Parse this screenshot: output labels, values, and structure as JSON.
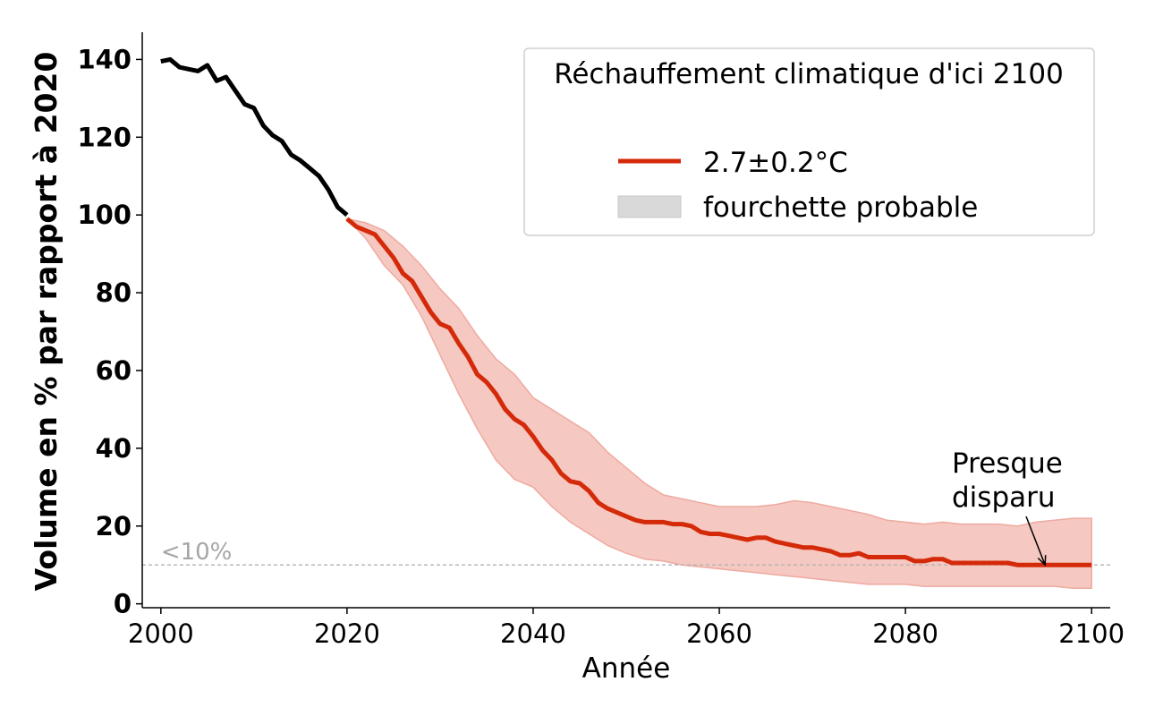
{
  "chart_data": {
    "type": "line",
    "title": "",
    "xlabel": "Année",
    "ylabel": "Volume en % par rapport à 2020",
    "xlim": [
      1998,
      2102
    ],
    "ylim": [
      -1,
      147
    ],
    "xticks": [
      2000,
      2020,
      2040,
      2060,
      2080,
      2100
    ],
    "yticks": [
      0,
      20,
      40,
      60,
      80,
      100,
      120,
      140
    ],
    "grid": false,
    "legend": {
      "title": "Réchauffement climatique d'ici 2100",
      "placement": "top-right",
      "entries": [
        {
          "label": "2.7±0.2°C",
          "kind": "line"
        },
        {
          "label": "fourchette probable",
          "kind": "band"
        }
      ]
    },
    "colors": {
      "historical": "#000000",
      "projection": "#d42a0a",
      "band": "#f5c8c1",
      "band_edge": "#eeaaa0",
      "reference": "#b3b3b3",
      "reference_text": "#a6a6a6",
      "legend_band": "#d9d9d9"
    },
    "reference_line": {
      "y": 10,
      "label": "<10%"
    },
    "annotation": {
      "lines": [
        "Presque",
        "disparu"
      ],
      "target": [
        2095,
        10
      ]
    },
    "historical": {
      "name": "",
      "x": [
        2000,
        2001,
        2002,
        2003,
        2004,
        2005,
        2006,
        2007,
        2008,
        2009,
        2010,
        2011,
        2012,
        2013,
        2014,
        2015,
        2016,
        2017,
        2018,
        2019,
        2020
      ],
      "y": [
        139.5,
        140,
        138,
        137.5,
        137,
        138.5,
        134.5,
        135.5,
        132,
        128.5,
        127.5,
        123,
        120.5,
        119,
        115.5,
        114,
        112,
        110,
        106.5,
        102,
        100
      ]
    },
    "projection": {
      "name": "2.7±0.2°C",
      "x": [
        2020,
        2021,
        2022,
        2023,
        2024,
        2025,
        2026,
        2027,
        2028,
        2029,
        2030,
        2031,
        2032,
        2033,
        2034,
        2035,
        2036,
        2037,
        2038,
        2039,
        2040,
        2041,
        2042,
        2043,
        2044,
        2045,
        2046,
        2047,
        2048,
        2049,
        2050,
        2051,
        2052,
        2053,
        2054,
        2055,
        2056,
        2057,
        2058,
        2059,
        2060,
        2061,
        2062,
        2063,
        2064,
        2065,
        2066,
        2067,
        2068,
        2069,
        2070,
        2071,
        2072,
        2073,
        2074,
        2075,
        2076,
        2077,
        2078,
        2079,
        2080,
        2081,
        2082,
        2083,
        2084,
        2085,
        2086,
        2087,
        2088,
        2089,
        2090,
        2091,
        2092,
        2093,
        2094,
        2095,
        2096,
        2097,
        2098,
        2099,
        2100
      ],
      "y": [
        99,
        97,
        96,
        95,
        92,
        89,
        85,
        83,
        79,
        75,
        72,
        71,
        67,
        63.5,
        59,
        57,
        54,
        50,
        47.5,
        46,
        43,
        39.5,
        37,
        33.5,
        31.5,
        31,
        29,
        26,
        24.5,
        23.5,
        22.5,
        21.5,
        21,
        21,
        21,
        20.5,
        20.5,
        20,
        18.5,
        18,
        18,
        17.5,
        17,
        16.5,
        17,
        17,
        16,
        15.5,
        15,
        14.5,
        14.5,
        14,
        13.5,
        12.5,
        12.5,
        13,
        12,
        12,
        12,
        12,
        12,
        11,
        11,
        11.5,
        11.5,
        10.5,
        10.5,
        10.5,
        10.5,
        10.5,
        10.5,
        10.5,
        10,
        10,
        10,
        10,
        10,
        10,
        10,
        10,
        10
      ]
    },
    "band": {
      "name": "fourchette probable",
      "x": [
        2020,
        2022,
        2024,
        2026,
        2028,
        2030,
        2032,
        2034,
        2036,
        2038,
        2040,
        2042,
        2044,
        2046,
        2048,
        2050,
        2052,
        2054,
        2056,
        2058,
        2060,
        2062,
        2064,
        2066,
        2068,
        2070,
        2072,
        2074,
        2076,
        2078,
        2080,
        2082,
        2084,
        2086,
        2088,
        2090,
        2092,
        2094,
        2096,
        2098,
        2100
      ],
      "upper": [
        99,
        98,
        96,
        92,
        87,
        81,
        76,
        69,
        63,
        59,
        53,
        50,
        47,
        44,
        39,
        35,
        31,
        28,
        27,
        26,
        25,
        25,
        25,
        25.5,
        26.5,
        26,
        25,
        24,
        23,
        21.5,
        21,
        20.5,
        21,
        20.5,
        20.5,
        20.5,
        20,
        21,
        21.5,
        22,
        22
      ],
      "lower": [
        99,
        94,
        87,
        82,
        74,
        64,
        54,
        45,
        37,
        32,
        30,
        25,
        21,
        18,
        15,
        13,
        11.5,
        11,
        10,
        9.5,
        9,
        8.5,
        8,
        7.5,
        7,
        6.5,
        6,
        5.5,
        5,
        5,
        5,
        4.5,
        4.5,
        4.5,
        4.5,
        4.5,
        4.5,
        4.5,
        4.5,
        4,
        4
      ]
    }
  }
}
